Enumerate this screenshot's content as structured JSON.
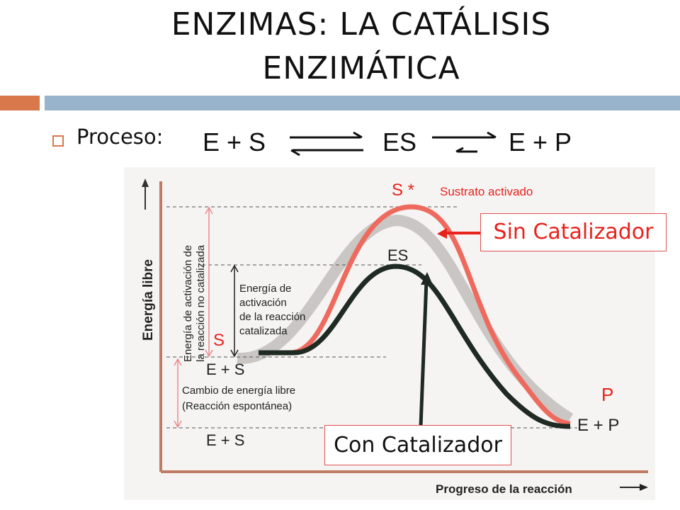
{
  "slide": {
    "title_line1": "ENZIMAS: LA CATÁLISIS",
    "title_line2": "ENZIMÁTICA",
    "bullet_label": "Proceso:"
  },
  "equation": {
    "left": "E + S",
    "middle": "ES",
    "right": "E + P"
  },
  "figure": {
    "y_axis_label": "Energía libre",
    "x_axis_label": "Progreso de la reacción",
    "peak_label": "S *",
    "peak_caption": "Sustrato activado",
    "es_label": "ES",
    "s_label": "S",
    "start_label": "E + S",
    "start_label_lower": "E + S",
    "p_label": "P",
    "end_label": "E  +  P",
    "uncatalyzed_activation": [
      "Energía de activación de",
      "la reacción no catalizada"
    ],
    "catalyzed_activation": [
      "Energía de",
      "activación",
      "de la reacción",
      "catalizada"
    ],
    "free_energy_change": [
      "Cambio de energía libre",
      "(Reacción espontánea)"
    ]
  },
  "callouts": {
    "uncatalyzed": "Sin Catalizador",
    "catalyzed": "Con Catalizador"
  },
  "colors": {
    "accent_orange": "#d9784a",
    "accent_blue": "#98b3cc",
    "uncatalyzed_curve": "#ef6a5e",
    "catalyzed_curve": "#1f2a22",
    "callout_arrow": "#e8221c"
  }
}
